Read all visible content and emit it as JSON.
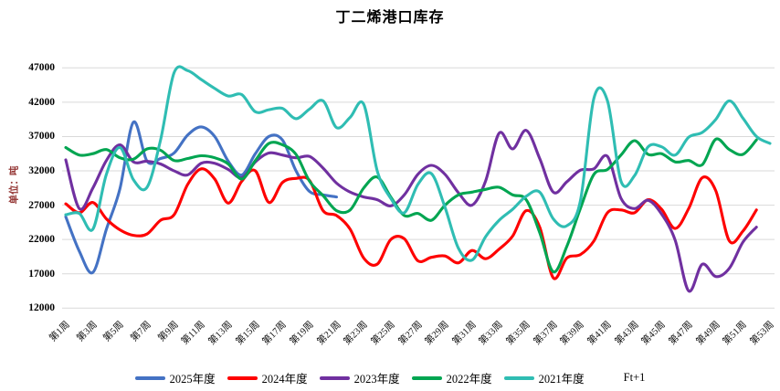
{
  "legend": {
    "ft_label": "Ft+1"
  },
  "colors": {
    "grid": "#d9d9d9",
    "axis_title": "#943634",
    "blue_2025": "#4472c4",
    "red_2024": "#fe0000",
    "purple_2023": "#7030a0",
    "green_2022": "#00a551",
    "teal_2021": "#2fbdb3"
  },
  "chart_data": {
    "type": "line",
    "title": "丁二烯港口库存",
    "ylabel": "单位：吨",
    "xlabel": "",
    "ylim": [
      12000,
      47000
    ],
    "y_tick_step": 5000,
    "grid": "horizontal",
    "legend_position": "bottom",
    "y_ticks": [
      47000,
      42000,
      37000,
      32000,
      27000,
      22000,
      17000,
      12000
    ],
    "x_weeks": [
      1,
      53
    ],
    "x_tick_labels": [
      "第1周",
      "第3周",
      "第5周",
      "第7周",
      "第9周",
      "第11周",
      "第13周",
      "第15周",
      "第17周",
      "第19周",
      "第21周",
      "第23周",
      "第25周",
      "第27周",
      "第29周",
      "第31周",
      "第33周",
      "第35周",
      "第37周",
      "第39周",
      "第41周",
      "第43周",
      "第45周",
      "第47周",
      "第49周",
      "第51周",
      "第53周"
    ],
    "series": [
      {
        "name": "2025年度",
        "color_key": "blue_2025",
        "start_week": 1,
        "values": [
          25300,
          20300,
          17200,
          23500,
          29400,
          39100,
          33400,
          33800,
          34600,
          37200,
          38400,
          37000,
          33400,
          31400,
          34500,
          37000,
          36500,
          32000,
          29000,
          28500,
          28200
        ]
      },
      {
        "name": "2024年度",
        "color_key": "red_2024",
        "start_week": 1,
        "values": [
          27200,
          25900,
          27400,
          25000,
          23400,
          22600,
          22800,
          24800,
          25600,
          30000,
          32300,
          30800,
          27300,
          30500,
          32000,
          27400,
          30300,
          30900,
          30600,
          26200,
          25500,
          23500,
          19300,
          18400,
          22000,
          22100,
          18900,
          19400,
          19600,
          18600,
          20400,
          19200,
          20600,
          22500,
          26200,
          23800,
          16400,
          19300,
          19800,
          21800,
          25900,
          26300,
          25900,
          27800,
          26400,
          23600,
          26500,
          31000,
          29100,
          21800,
          23200,
          26300
        ]
      },
      {
        "name": "2023年度",
        "color_key": "purple_2023",
        "start_week": 1,
        "values": [
          33600,
          26500,
          29500,
          33500,
          35800,
          33300,
          33400,
          33000,
          32000,
          31400,
          33100,
          33100,
          32200,
          31000,
          33300,
          34600,
          34300,
          33900,
          34100,
          32400,
          30200,
          28900,
          28200,
          27800,
          26900,
          28500,
          31500,
          32800,
          31500,
          28800,
          27000,
          30500,
          37500,
          35200,
          37900,
          33800,
          28900,
          30400,
          32100,
          32300,
          34100,
          28000,
          26500,
          27700,
          25700,
          21900,
          14500,
          18400,
          16600,
          17800,
          21600,
          23800
        ]
      },
      {
        "name": "2022年度",
        "color_key": "green_2022",
        "start_week": 1,
        "values": [
          35400,
          34300,
          34500,
          35100,
          33900,
          33700,
          35200,
          35000,
          33500,
          33800,
          34200,
          33900,
          33000,
          30800,
          33500,
          36000,
          35800,
          34400,
          30500,
          28400,
          26200,
          26300,
          29500,
          31100,
          28200,
          25500,
          25800,
          24800,
          27000,
          28500,
          28900,
          29300,
          29600,
          28500,
          27800,
          23000,
          17300,
          21000,
          26500,
          31500,
          32200,
          34300,
          36400,
          34400,
          34500,
          33300,
          33500,
          32900,
          36600,
          35100,
          34400,
          36500
        ]
      },
      {
        "name": "2021年度",
        "color_key": "teal_2021",
        "start_week": 1,
        "values": [
          25600,
          25800,
          23500,
          31500,
          35400,
          30700,
          29600,
          36500,
          46300,
          46600,
          45300,
          44000,
          42900,
          43100,
          40600,
          40900,
          41100,
          39600,
          41000,
          42200,
          38300,
          39800,
          41700,
          32000,
          28000,
          25900,
          30000,
          31600,
          26700,
          20700,
          19000,
          22400,
          24800,
          26400,
          28300,
          28900,
          25000,
          24000,
          27600,
          42600,
          42200,
          30500,
          31300,
          35500,
          35500,
          34300,
          36900,
          37600,
          39500,
          42200,
          39700,
          37000,
          36000
        ]
      }
    ]
  }
}
